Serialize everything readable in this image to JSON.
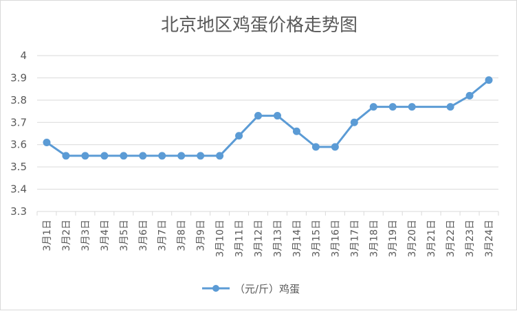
{
  "chart_data": {
    "type": "line",
    "title": "北京地区鸡蛋价格走势图",
    "xlabel": "",
    "ylabel": "",
    "categories": [
      "3月1日",
      "3月2日",
      "3月3日",
      "3月4日",
      "3月5日",
      "3月6日",
      "3月7日",
      "3月8日",
      "3月9日",
      "3月10日",
      "3月11日",
      "3月12日",
      "3月13日",
      "3月14日",
      "3月15日",
      "3月16日",
      "3月17日",
      "3月18日",
      "3月19日",
      "3月20日",
      "3月21日",
      "3月22日",
      "3月23日",
      "3月24日"
    ],
    "series": [
      {
        "name": "（元/斤）鸡蛋",
        "values": [
          3.61,
          3.55,
          3.55,
          3.55,
          3.55,
          3.55,
          3.55,
          3.55,
          3.55,
          3.55,
          3.64,
          3.73,
          3.73,
          3.66,
          3.59,
          3.59,
          3.7,
          3.77,
          3.77,
          3.77,
          null,
          3.77,
          3.82,
          3.89
        ],
        "color": "#5b9bd5"
      }
    ],
    "ylim": [
      3.3,
      4.0
    ],
    "yticks": [
      "3.3",
      "3.4",
      "3.5",
      "3.6",
      "3.7",
      "3.8",
      "3.9",
      "4"
    ],
    "grid": true,
    "legend": "bottom"
  }
}
